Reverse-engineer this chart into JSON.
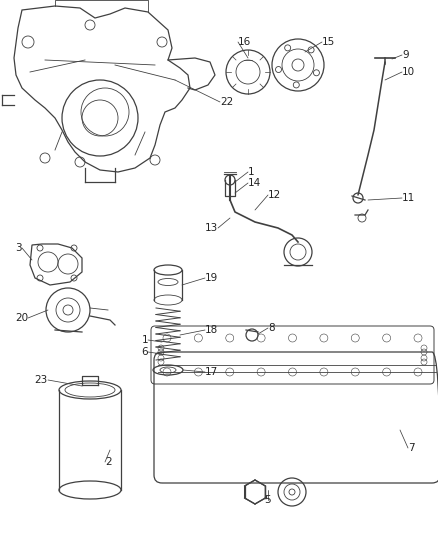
{
  "bg_color": "#ffffff",
  "line_color": "#404040",
  "text_color": "#222222",
  "lw_main": 0.9,
  "lw_thin": 0.6,
  "fs": 7.5,
  "figw": 4.39,
  "figh": 5.33,
  "dpi": 100
}
